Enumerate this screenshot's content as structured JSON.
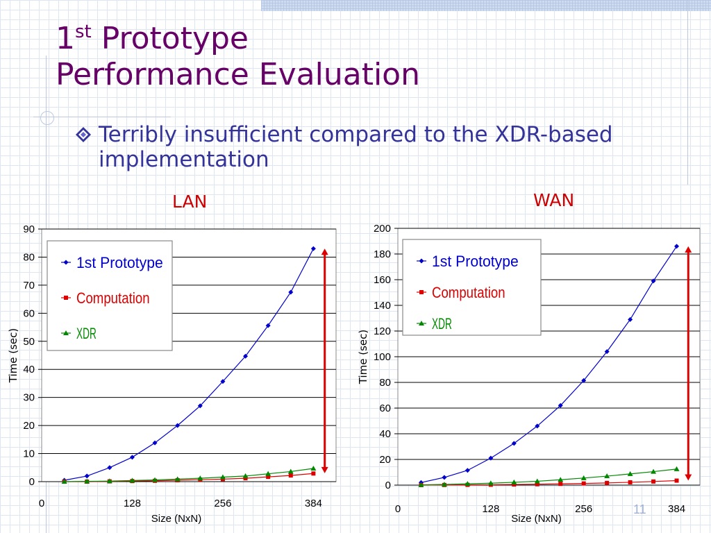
{
  "slide": {
    "title_line1_number": "1",
    "title_line1_sup": "st",
    "title_line1_rest": " Prototype",
    "title_line2": "Performance Evaluation",
    "bullet_text": "Terribly insufficient compared to the XDR-based implementation",
    "bullet_icon": "diamond-bullet-icon",
    "slide_number": "11",
    "colors": {
      "title": "#660066",
      "bullet": "#333399",
      "chart_title": "#cc0000",
      "prototype": "#0000cc",
      "computation": "#dd0000",
      "xdr": "#008800",
      "gap_arrow": "#dd0000"
    }
  },
  "chart_data": [
    {
      "id": "lan",
      "type": "line",
      "title": "LAN",
      "xlabel": "Size (NxN)",
      "ylabel": "Time (sec)",
      "xticks": [
        0,
        128,
        256,
        384
      ],
      "yticks": [
        0,
        10,
        20,
        30,
        40,
        50,
        60,
        70,
        80,
        90
      ],
      "xlim": [
        0,
        416
      ],
      "ylim": [
        0,
        90
      ],
      "grid": "horizontal",
      "legend_position": "top-left",
      "x": [
        32,
        64,
        96,
        128,
        160,
        192,
        224,
        256,
        288,
        320,
        352,
        384
      ],
      "series": [
        {
          "name": "1st Prototype",
          "marker": "diamond",
          "color": "#0000cc",
          "values": [
            0.5,
            2,
            5,
            8.7,
            13.8,
            20,
            27,
            35.7,
            44.7,
            55.6,
            67.5,
            83
          ]
        },
        {
          "name": "Computation",
          "marker": "square",
          "color": "#dd0000",
          "values": [
            0,
            0,
            0.1,
            0.2,
            0.3,
            0.5,
            0.7,
            0.9,
            1.2,
            1.7,
            2.2,
            2.9
          ]
        },
        {
          "name": "XDR",
          "marker": "triangle",
          "color": "#008800",
          "values": [
            0,
            0.1,
            0.2,
            0.4,
            0.6,
            0.9,
            1.2,
            1.6,
            2,
            2.8,
            3.6,
            4.7
          ]
        }
      ],
      "gap_arrow": {
        "x": 400,
        "from": 3,
        "to": 83
      }
    },
    {
      "id": "wan",
      "type": "line",
      "title": "WAN",
      "xlabel": "Size (NxN)",
      "ylabel": "Time (sec)",
      "xticks": [
        0,
        128,
        256,
        384
      ],
      "yticks": [
        0,
        20,
        40,
        60,
        80,
        100,
        120,
        140,
        160,
        180,
        200
      ],
      "xlim": [
        0,
        416
      ],
      "ylim": [
        0,
        200
      ],
      "grid": "horizontal",
      "legend_position": "top-left",
      "x": [
        32,
        64,
        96,
        128,
        160,
        192,
        224,
        256,
        288,
        320,
        352,
        384
      ],
      "series": [
        {
          "name": "1st Prototype",
          "marker": "diamond",
          "color": "#0000cc",
          "values": [
            2,
            6,
            11.5,
            21,
            32.5,
            46,
            62,
            81.5,
            104,
            129,
            159,
            186
          ]
        },
        {
          "name": "Computation",
          "marker": "square",
          "color": "#dd0000",
          "values": [
            0,
            0.1,
            0.2,
            0.3,
            0.5,
            0.7,
            1,
            1.3,
            1.7,
            2.2,
            2.8,
            3.5
          ]
        },
        {
          "name": "XDR",
          "marker": "triangle",
          "color": "#008800",
          "values": [
            0.2,
            0.5,
            1,
            1.5,
            2.2,
            3,
            4.2,
            5.5,
            7,
            8.7,
            10.5,
            12.5
          ]
        }
      ],
      "gap_arrow": {
        "x": 400,
        "from": 3.5,
        "to": 186
      }
    }
  ]
}
